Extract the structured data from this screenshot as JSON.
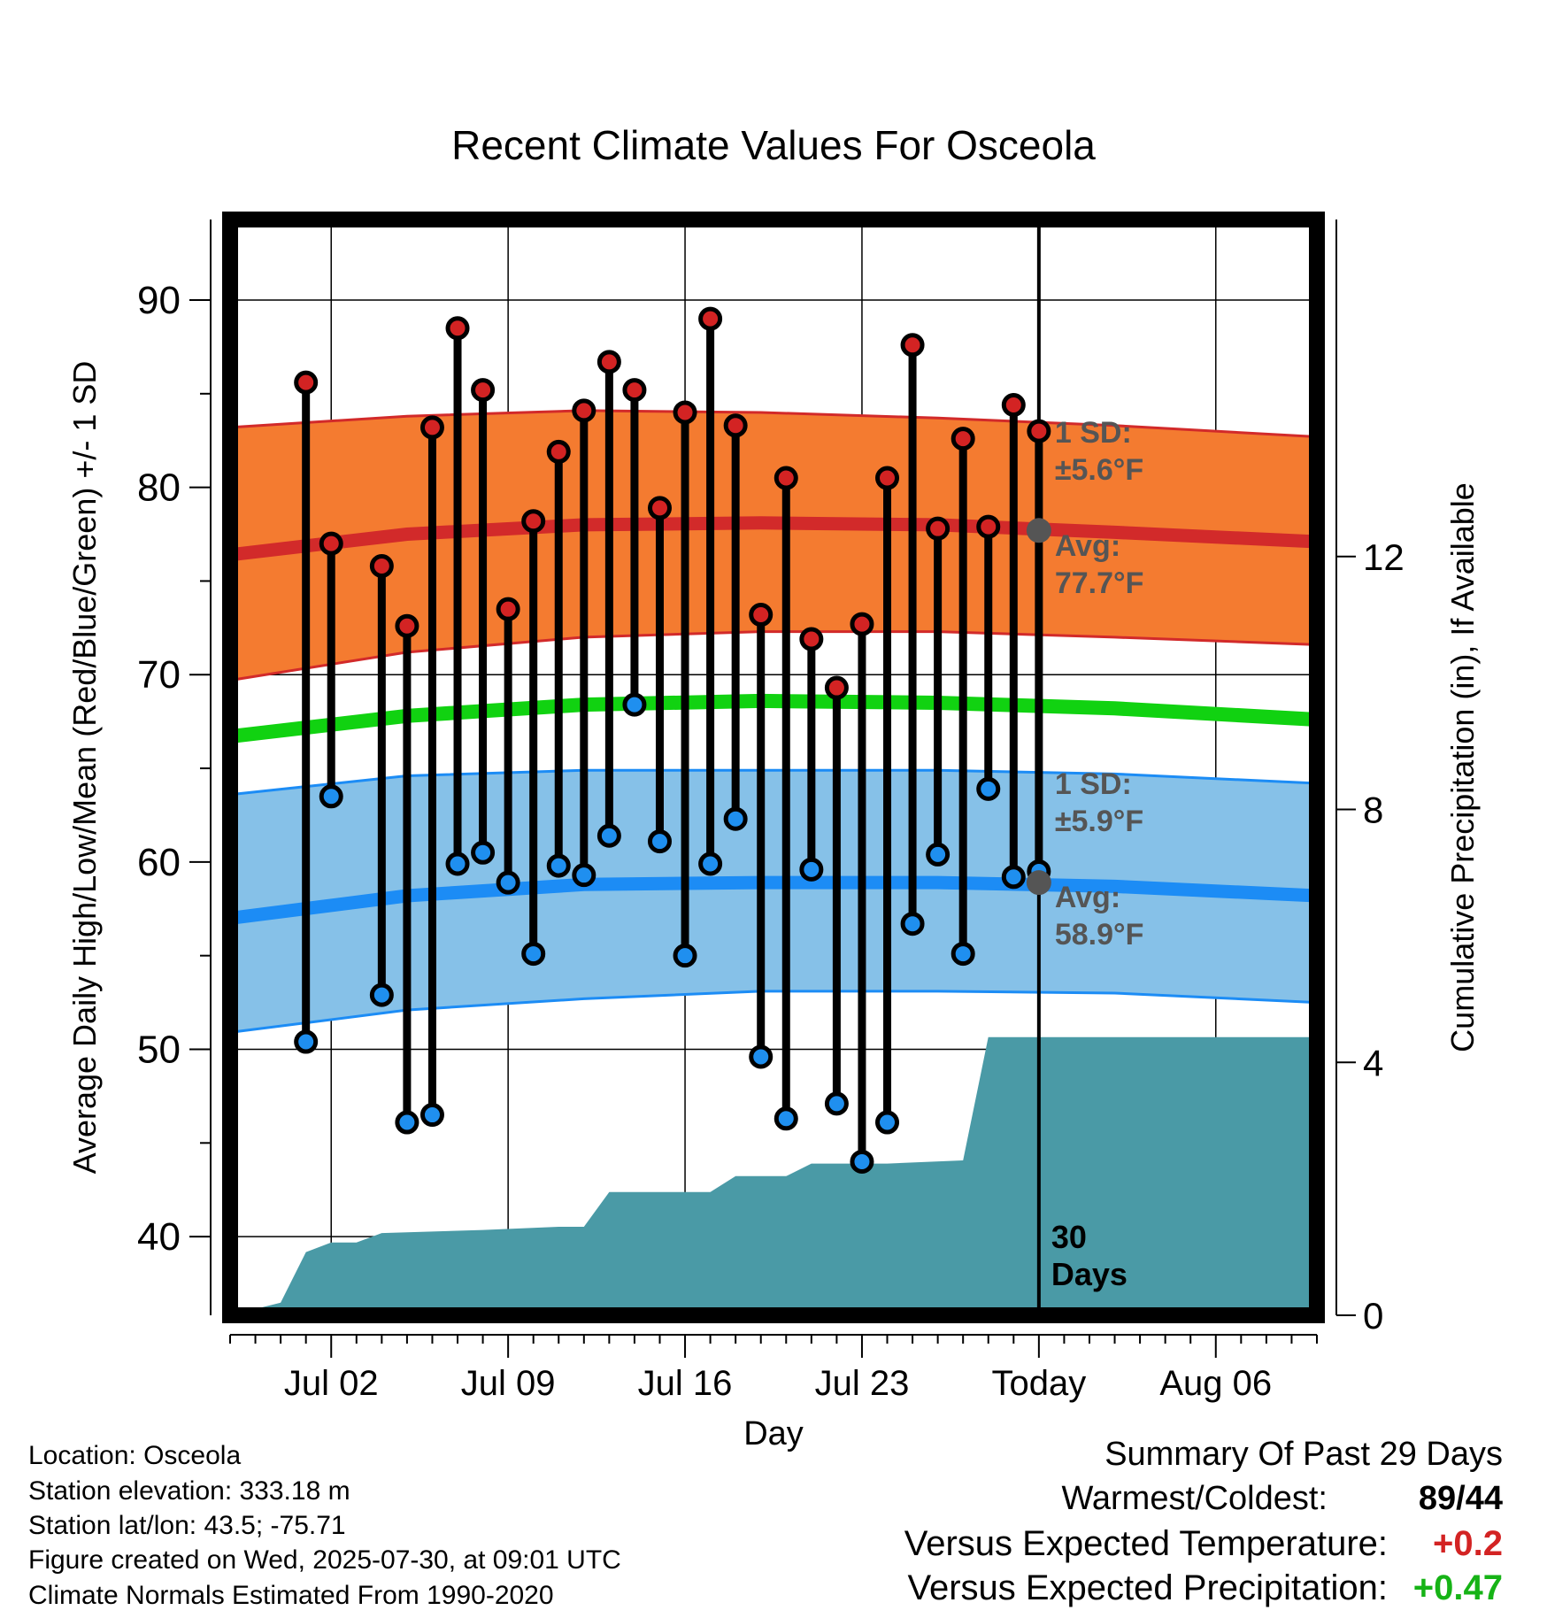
{
  "chart_data": {
    "type": "line",
    "title": "Recent Climate Values For Osceola",
    "xlabel": "Day",
    "ylabel": "Average Daily High/Low/Mean (Red/Blue/Green) +/- 1 SD",
    "y2label": "Cumulative Precipitation (in), If Available",
    "ylim": [
      35.8,
      94.3
    ],
    "y2lim": [
      0,
      17.33
    ],
    "yticks": [
      40,
      50,
      60,
      70,
      80,
      90
    ],
    "y2ticks": [
      0,
      4,
      8,
      12
    ],
    "xlim": [
      "2025-06-28",
      "2025-08-10"
    ],
    "xticks": [
      {
        "date": "2025-07-02",
        "label": "Jul 02"
      },
      {
        "date": "2025-07-09",
        "label": "Jul 09"
      },
      {
        "date": "2025-07-16",
        "label": "Jul 16"
      },
      {
        "date": "2025-07-23",
        "label": "Jul 23"
      },
      {
        "date": "2025-07-30",
        "label": "Today"
      },
      {
        "date": "2025-08-06",
        "label": "Aug 06"
      }
    ],
    "grid": true,
    "today_date": "2025-07-30",
    "period_label_line1": "30",
    "period_label_line2": "Days",
    "normals": {
      "dates": [
        "2025-06-28",
        "2025-07-05",
        "2025-07-12",
        "2025-07-19",
        "2025-07-26",
        "2025-08-02",
        "2025-08-10"
      ],
      "high_avg": [
        76.4,
        77.5,
        78.0,
        78.1,
        78.0,
        77.6,
        77.1
      ],
      "high_upper": [
        83.2,
        83.8,
        84.1,
        84.0,
        83.7,
        83.3,
        82.7
      ],
      "high_lower": [
        69.7,
        71.2,
        72.0,
        72.3,
        72.3,
        72.0,
        71.6
      ],
      "low_avg": [
        57.0,
        58.2,
        58.8,
        58.9,
        58.9,
        58.7,
        58.2
      ],
      "low_upper": [
        63.6,
        64.6,
        64.9,
        64.9,
        64.9,
        64.7,
        64.2
      ],
      "low_lower": [
        50.9,
        52.1,
        52.7,
        53.1,
        53.1,
        53.0,
        52.5
      ],
      "mean_avg": [
        66.7,
        67.8,
        68.4,
        68.6,
        68.5,
        68.2,
        67.6
      ]
    },
    "band_labels": {
      "high_sd_line1": "1 SD:",
      "high_sd_line2": "±5.6°F",
      "high_avg_line1": "Avg:",
      "high_avg_line2": "77.7°F",
      "low_sd_line1": "1 SD:",
      "low_sd_line2": "±5.9°F",
      "low_avg_line1": "Avg:",
      "low_avg_line2": "58.9°F"
    },
    "today_markers": {
      "high": 77.7,
      "low": 58.9
    },
    "daily": [
      {
        "date": "2025-07-01",
        "high": 85.6,
        "low": 50.4
      },
      {
        "date": "2025-07-02",
        "high": 77.0,
        "low": 63.5
      },
      {
        "date": "2025-07-04",
        "high": 75.8,
        "low": 52.9
      },
      {
        "date": "2025-07-05",
        "high": 72.6,
        "low": 46.1
      },
      {
        "date": "2025-07-06",
        "high": 83.2,
        "low": 46.5
      },
      {
        "date": "2025-07-07",
        "high": 88.5,
        "low": 59.9
      },
      {
        "date": "2025-07-08",
        "high": 85.2,
        "low": 60.5
      },
      {
        "date": "2025-07-09",
        "high": 73.5,
        "low": 58.9
      },
      {
        "date": "2025-07-10",
        "high": 78.2,
        "low": 55.1
      },
      {
        "date": "2025-07-11",
        "high": 81.9,
        "low": 59.8
      },
      {
        "date": "2025-07-12",
        "high": 84.1,
        "low": 59.3
      },
      {
        "date": "2025-07-13",
        "high": 86.7,
        "low": 61.4
      },
      {
        "date": "2025-07-14",
        "high": 85.2,
        "low": 68.4
      },
      {
        "date": "2025-07-15",
        "high": 78.9,
        "low": 61.1
      },
      {
        "date": "2025-07-16",
        "high": 84.0,
        "low": 55.0
      },
      {
        "date": "2025-07-17",
        "high": 89.0,
        "low": 59.9
      },
      {
        "date": "2025-07-18",
        "high": 83.3,
        "low": 62.3
      },
      {
        "date": "2025-07-19",
        "high": 73.2,
        "low": 49.6
      },
      {
        "date": "2025-07-20",
        "high": 80.5,
        "low": 46.3
      },
      {
        "date": "2025-07-21",
        "high": 71.9,
        "low": 59.6
      },
      {
        "date": "2025-07-22",
        "high": 69.3,
        "low": 47.1
      },
      {
        "date": "2025-07-23",
        "high": 72.7,
        "low": 44.0
      },
      {
        "date": "2025-07-24",
        "high": 80.5,
        "low": 46.1
      },
      {
        "date": "2025-07-25",
        "high": 87.6,
        "low": 56.7
      },
      {
        "date": "2025-07-26",
        "high": 77.8,
        "low": 60.4
      },
      {
        "date": "2025-07-27",
        "high": 82.6,
        "low": 55.1
      },
      {
        "date": "2025-07-28",
        "high": 77.9,
        "low": 63.9
      },
      {
        "date": "2025-07-29",
        "high": 84.4,
        "low": 59.2
      },
      {
        "date": "2025-07-30",
        "high": 83.0,
        "low": 59.5
      }
    ],
    "precip": {
      "dates": [
        "2025-06-30",
        "2025-07-01",
        "2025-07-02",
        "2025-07-03",
        "2025-07-04",
        "2025-07-08",
        "2025-07-11",
        "2025-07-12",
        "2025-07-13",
        "2025-07-14",
        "2025-07-17",
        "2025-07-18",
        "2025-07-19",
        "2025-07-20",
        "2025-07-21",
        "2025-07-22",
        "2025-07-23",
        "2025-07-24",
        "2025-07-27",
        "2025-07-28",
        "2025-07-29",
        "2025-08-10"
      ],
      "cumulative": [
        0.2,
        1.0,
        1.15,
        1.15,
        1.3,
        1.35,
        1.4,
        1.4,
        1.95,
        1.95,
        1.95,
        2.2,
        2.2,
        2.2,
        2.4,
        2.4,
        2.4,
        2.4,
        2.45,
        4.4,
        4.4,
        4.4
      ]
    }
  },
  "info": {
    "location": "Location: Osceola",
    "elevation": "Station elevation: 333.18 m",
    "latlon": "Station lat/lon: 43.5; -75.71",
    "created": "Figure created on Wed, 2025-07-30, at 09:01 UTC",
    "normals": "Climate Normals Estimated From 1990-2020"
  },
  "summary": {
    "title": "Summary Of Past 29 Days",
    "warmest_label": "Warmest/Coldest:",
    "warmest_value": "89",
    "separator": "/",
    "coldest_value": "44",
    "temp_label": "Versus Expected Temperature:",
    "temp_value": "+0.2",
    "precip_label": "Versus Expected Precipitation:",
    "precip_value": "+0.47"
  },
  "colors": {
    "high_band": "#f47b30",
    "high_line": "#d22a2a",
    "low_band": "#86c1e8",
    "low_line": "#1c8cf5",
    "mean_line": "#11d211",
    "precip_fill": "#4a9aa6",
    "high_dot": "#d32323",
    "low_dot": "#1f8fef",
    "label_gray": "#555555",
    "temp_positive": "#d32323",
    "precip_positive": "#16b316"
  }
}
